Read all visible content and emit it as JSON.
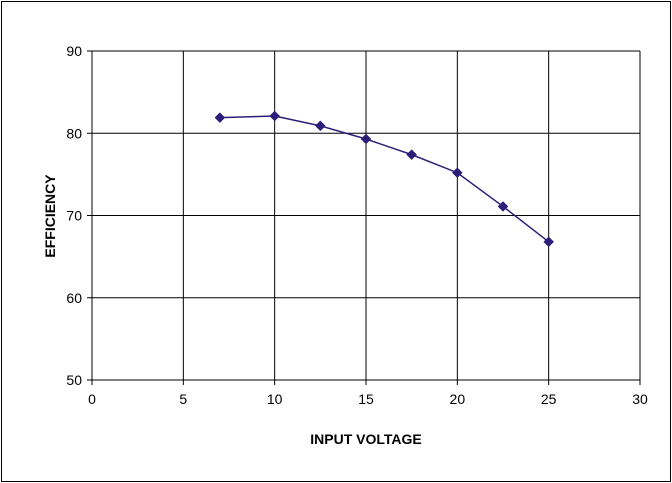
{
  "chart_data": {
    "type": "line",
    "title": "",
    "xlabel": "INPUT VOLTAGE",
    "ylabel": "EFFICIENCY",
    "xlim": [
      0,
      30
    ],
    "ylim": [
      50,
      90
    ],
    "xticks": [
      0,
      5,
      10,
      15,
      20,
      25,
      30
    ],
    "yticks": [
      50,
      60,
      70,
      80,
      90
    ],
    "grid": true,
    "legend": "none",
    "series": [
      {
        "color": "#2b1f7a",
        "marker": "diamond",
        "x": [
          7,
          10,
          12.5,
          15,
          17.5,
          20,
          22.5,
          25
        ],
        "y": [
          81.9,
          82.1,
          80.9,
          79.3,
          77.4,
          75.2,
          71.1,
          66.8
        ]
      }
    ]
  }
}
